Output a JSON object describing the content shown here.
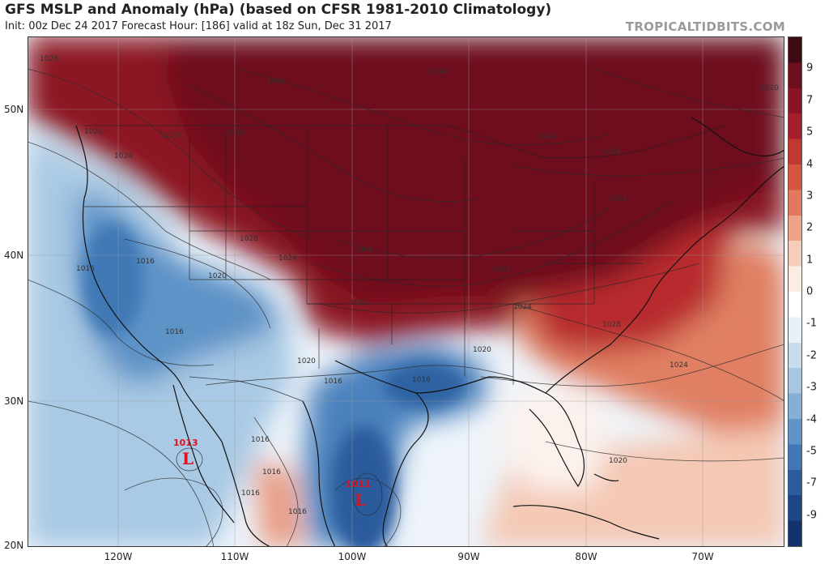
{
  "header": {
    "title": "GFS MSLP and Anomaly (hPa) (based on CFSR 1981-2010 Climatology)",
    "subtitle": "Init: 00z Dec 24 2017   Forecast Hour: [186]   valid at 18z Sun, Dec 31 2017",
    "brand": "TROPICALTIDBITS.COM"
  },
  "colorbar": {
    "labels": [
      "9",
      "7",
      "5",
      "4",
      "3",
      "2",
      "1",
      "0",
      "-1",
      "-2",
      "-3",
      "-4",
      "-5",
      "-7",
      "-9"
    ],
    "colors": [
      "#3d0a12",
      "#6f0e1c",
      "#8b1424",
      "#a51e2b",
      "#c0392f",
      "#d4563f",
      "#e2795f",
      "#eea389",
      "#f6cdb8",
      "#fbece4",
      "#ffffff",
      "#e9f1f8",
      "#c8dced",
      "#a7c6e2",
      "#84b0d6",
      "#5f94c6",
      "#4077b4",
      "#2b5c9d",
      "#1c4686",
      "#12336d"
    ]
  },
  "axes": {
    "lat_labels": [
      "50N",
      "40N",
      "30N",
      "20N"
    ],
    "lon_labels": [
      "120W",
      "110W",
      "100W",
      "90W",
      "80W",
      "70W"
    ]
  },
  "isobar_labels": [
    "1028",
    "1020",
    "1028",
    "1024",
    "1036",
    "1040",
    "1044",
    "1020",
    "1040",
    "1036",
    "1032",
    "1016",
    "1016",
    "1020",
    "1028",
    "1024",
    "1040",
    "1028",
    "1032",
    "1024",
    "1028",
    "1024",
    "1016",
    "1020",
    "1016",
    "1016",
    "1020",
    "1016",
    "1016",
    "1016",
    "1016",
    "1020"
  ],
  "lows": [
    {
      "value": "1013",
      "symbol": "L"
    },
    {
      "value": "1011",
      "symbol": "L"
    }
  ]
}
